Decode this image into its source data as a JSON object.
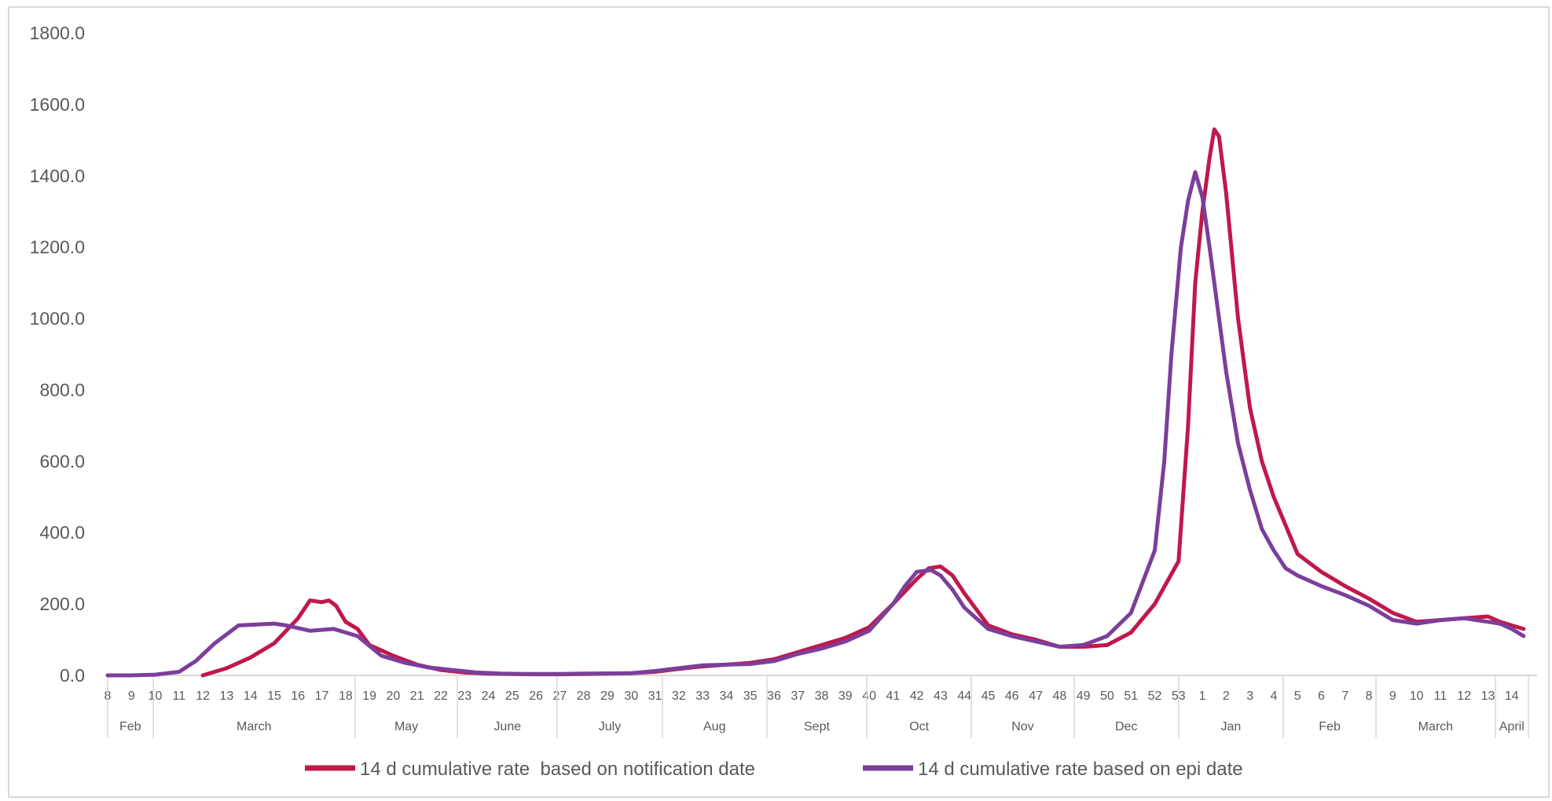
{
  "chart_data": {
    "type": "line",
    "title": "",
    "xlabel": "",
    "ylabel": "",
    "ylim": [
      0,
      1800
    ],
    "y_ticks": [
      "0.0",
      "200.0",
      "400.0",
      "600.0",
      "800.0",
      "1000.0",
      "1200.0",
      "1400.0",
      "1600.0",
      "1800.0"
    ],
    "grid": false,
    "legend_position": "bottom",
    "x_week_labels": [
      "8",
      "9",
      "10",
      "11",
      "12",
      "13",
      "14",
      "15",
      "16",
      "17",
      "18",
      "19",
      "20",
      "21",
      "22",
      "23",
      "24",
      "25",
      "26",
      "27",
      "28",
      "29",
      "30",
      "31",
      "32",
      "33",
      "34",
      "35",
      "36",
      "37",
      "38",
      "39",
      "40",
      "41",
      "42",
      "43",
      "44",
      "45",
      "46",
      "47",
      "48",
      "49",
      "50",
      "51",
      "52",
      "53",
      "1",
      "2",
      "3",
      "4",
      "5",
      "6",
      "7",
      "8",
      "9",
      "10",
      "11",
      "12",
      "13",
      "14"
    ],
    "x_month_groups": [
      {
        "label": "Feb",
        "start": 0,
        "end": 2
      },
      {
        "label": "March",
        "start": 2,
        "end": 10.5
      },
      {
        "label": "May",
        "start": 10.5,
        "end": 14.8
      },
      {
        "label": "June",
        "start": 14.8,
        "end": 19
      },
      {
        "label": "July",
        "start": 19,
        "end": 23.4
      },
      {
        "label": "Aug",
        "start": 23.4,
        "end": 27.8
      },
      {
        "label": "Sept",
        "start": 27.8,
        "end": 32
      },
      {
        "label": "Oct",
        "start": 32,
        "end": 36.4
      },
      {
        "label": "Nov",
        "start": 36.4,
        "end": 40.7
      },
      {
        "label": "Dec",
        "start": 40.7,
        "end": 45.1
      },
      {
        "label": "Jan",
        "start": 45.1,
        "end": 49.5
      },
      {
        "label": "Feb",
        "start": 49.5,
        "end": 53.4
      },
      {
        "label": "March",
        "start": 53.4,
        "end": 58.4
      },
      {
        "label": "April",
        "start": 58.4,
        "end": 59.8
      }
    ],
    "series": [
      {
        "name": "14 d cumulative rate  based on notification date",
        "color": "#c0184a",
        "points": [
          [
            4,
            0
          ],
          [
            5,
            20
          ],
          [
            6,
            50
          ],
          [
            7,
            90
          ],
          [
            8,
            160
          ],
          [
            8.5,
            210
          ],
          [
            9,
            205
          ],
          [
            9.3,
            210
          ],
          [
            9.6,
            195
          ],
          [
            10,
            150
          ],
          [
            10.5,
            130
          ],
          [
            11,
            85
          ],
          [
            12,
            55
          ],
          [
            13,
            30
          ],
          [
            14,
            15
          ],
          [
            15,
            8
          ],
          [
            16,
            5
          ],
          [
            17,
            4
          ],
          [
            18,
            3
          ],
          [
            19,
            3
          ],
          [
            20,
            4
          ],
          [
            21,
            5
          ],
          [
            22,
            6
          ],
          [
            23,
            10
          ],
          [
            24,
            18
          ],
          [
            25,
            25
          ],
          [
            26,
            30
          ],
          [
            27,
            35
          ],
          [
            28,
            45
          ],
          [
            29,
            65
          ],
          [
            30,
            85
          ],
          [
            31,
            105
          ],
          [
            32,
            135
          ],
          [
            33,
            200
          ],
          [
            34,
            270
          ],
          [
            34.5,
            300
          ],
          [
            35,
            305
          ],
          [
            35.5,
            280
          ],
          [
            36,
            230
          ],
          [
            37,
            140
          ],
          [
            38,
            115
          ],
          [
            39,
            100
          ],
          [
            40,
            80
          ],
          [
            41,
            80
          ],
          [
            42,
            85
          ],
          [
            43,
            120
          ],
          [
            44,
            200
          ],
          [
            45,
            320
          ],
          [
            45.4,
            700
          ],
          [
            45.7,
            1100
          ],
          [
            46,
            1300
          ],
          [
            46.3,
            1450
          ],
          [
            46.5,
            1530
          ],
          [
            46.7,
            1510
          ],
          [
            47,
            1350
          ],
          [
            47.5,
            1000
          ],
          [
            48,
            750
          ],
          [
            48.5,
            600
          ],
          [
            49,
            500
          ],
          [
            49.5,
            420
          ],
          [
            50,
            340
          ],
          [
            51,
            290
          ],
          [
            52,
            250
          ],
          [
            53,
            215
          ],
          [
            54,
            175
          ],
          [
            55,
            150
          ],
          [
            56,
            155
          ],
          [
            57,
            160
          ],
          [
            58,
            165
          ],
          [
            58.5,
            150
          ],
          [
            59,
            140
          ],
          [
            59.5,
            130
          ]
        ]
      },
      {
        "name": "14 d cumulative rate based on epi date",
        "color": "#7b3f9a",
        "points": [
          [
            0,
            0
          ],
          [
            1,
            0
          ],
          [
            2,
            2
          ],
          [
            3,
            10
          ],
          [
            3.7,
            40
          ],
          [
            4.5,
            90
          ],
          [
            5.5,
            140
          ],
          [
            7,
            145
          ],
          [
            7.5,
            140
          ],
          [
            8.5,
            125
          ],
          [
            9.5,
            130
          ],
          [
            10.5,
            110
          ],
          [
            11.5,
            55
          ],
          [
            12.5,
            35
          ],
          [
            13.5,
            22
          ],
          [
            14.5,
            15
          ],
          [
            15.5,
            8
          ],
          [
            16.5,
            5
          ],
          [
            17.5,
            4
          ],
          [
            19,
            4
          ],
          [
            20,
            5
          ],
          [
            22,
            6
          ],
          [
            23,
            12
          ],
          [
            24,
            20
          ],
          [
            25,
            28
          ],
          [
            27,
            32
          ],
          [
            28,
            40
          ],
          [
            29,
            60
          ],
          [
            30,
            75
          ],
          [
            31,
            95
          ],
          [
            32,
            125
          ],
          [
            33,
            200
          ],
          [
            33.5,
            250
          ],
          [
            34,
            290
          ],
          [
            34.6,
            295
          ],
          [
            35,
            280
          ],
          [
            35.5,
            240
          ],
          [
            36,
            190
          ],
          [
            37,
            130
          ],
          [
            38,
            110
          ],
          [
            39,
            95
          ],
          [
            40,
            80
          ],
          [
            41,
            85
          ],
          [
            42,
            110
          ],
          [
            43,
            175
          ],
          [
            44,
            350
          ],
          [
            44.4,
            600
          ],
          [
            44.7,
            900
          ],
          [
            45.1,
            1200
          ],
          [
            45.4,
            1330
          ],
          [
            45.7,
            1410
          ],
          [
            46,
            1340
          ],
          [
            46.3,
            1200
          ],
          [
            46.7,
            1000
          ],
          [
            47,
            850
          ],
          [
            47.5,
            650
          ],
          [
            48,
            520
          ],
          [
            48.5,
            410
          ],
          [
            49,
            350
          ],
          [
            49.5,
            300
          ],
          [
            50,
            280
          ],
          [
            51,
            250
          ],
          [
            52,
            225
          ],
          [
            53,
            195
          ],
          [
            54,
            155
          ],
          [
            55,
            145
          ],
          [
            56,
            155
          ],
          [
            57,
            160
          ],
          [
            58,
            150
          ],
          [
            58.5,
            145
          ],
          [
            59,
            130
          ],
          [
            59.5,
            110
          ]
        ]
      }
    ]
  }
}
